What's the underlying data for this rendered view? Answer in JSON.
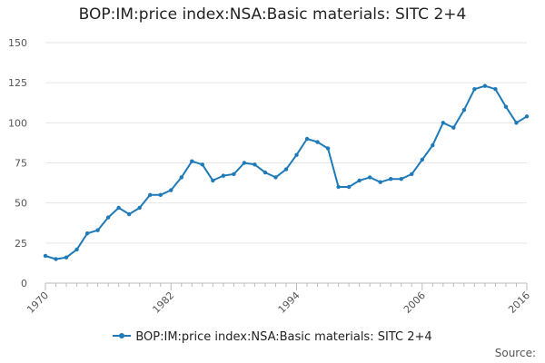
{
  "chart_data": {
    "type": "line",
    "title": "BOP:IM:price index:NSA:Basic materials: SITC 2+4",
    "xlabel": "",
    "ylabel": "",
    "ylim": [
      0,
      150
    ],
    "yticks": [
      0,
      25,
      50,
      75,
      100,
      125,
      150
    ],
    "xlim": [
      1970,
      2016
    ],
    "xticks": [
      1970,
      1982,
      1994,
      2006,
      2016
    ],
    "grid": "horizontal",
    "legend_position": "bottom",
    "color": "#1f7ab8",
    "series": [
      {
        "name": "BOP:IM:price index:NSA:Basic materials: SITC 2+4",
        "x": [
          1970,
          1971,
          1972,
          1973,
          1974,
          1975,
          1976,
          1977,
          1978,
          1979,
          1980,
          1981,
          1982,
          1983,
          1984,
          1985,
          1986,
          1987,
          1988,
          1989,
          1990,
          1991,
          1992,
          1993,
          1994,
          1995,
          1996,
          1997,
          1998,
          1999,
          2000,
          2001,
          2002,
          2003,
          2004,
          2005,
          2006,
          2007,
          2008,
          2009,
          2010,
          2011,
          2012,
          2013,
          2014,
          2015,
          2016
        ],
        "values": [
          17,
          15,
          16,
          21,
          31,
          33,
          41,
          47,
          43,
          47,
          55,
          55,
          58,
          66,
          76,
          74,
          64,
          67,
          68,
          75,
          74,
          69,
          66,
          71,
          80,
          90,
          88,
          84,
          60,
          60,
          64,
          66,
          63,
          65,
          65,
          68,
          77,
          86,
          100,
          97,
          108,
          121,
          123,
          121,
          110,
          100,
          104
        ]
      }
    ]
  },
  "source_label": "Source:"
}
